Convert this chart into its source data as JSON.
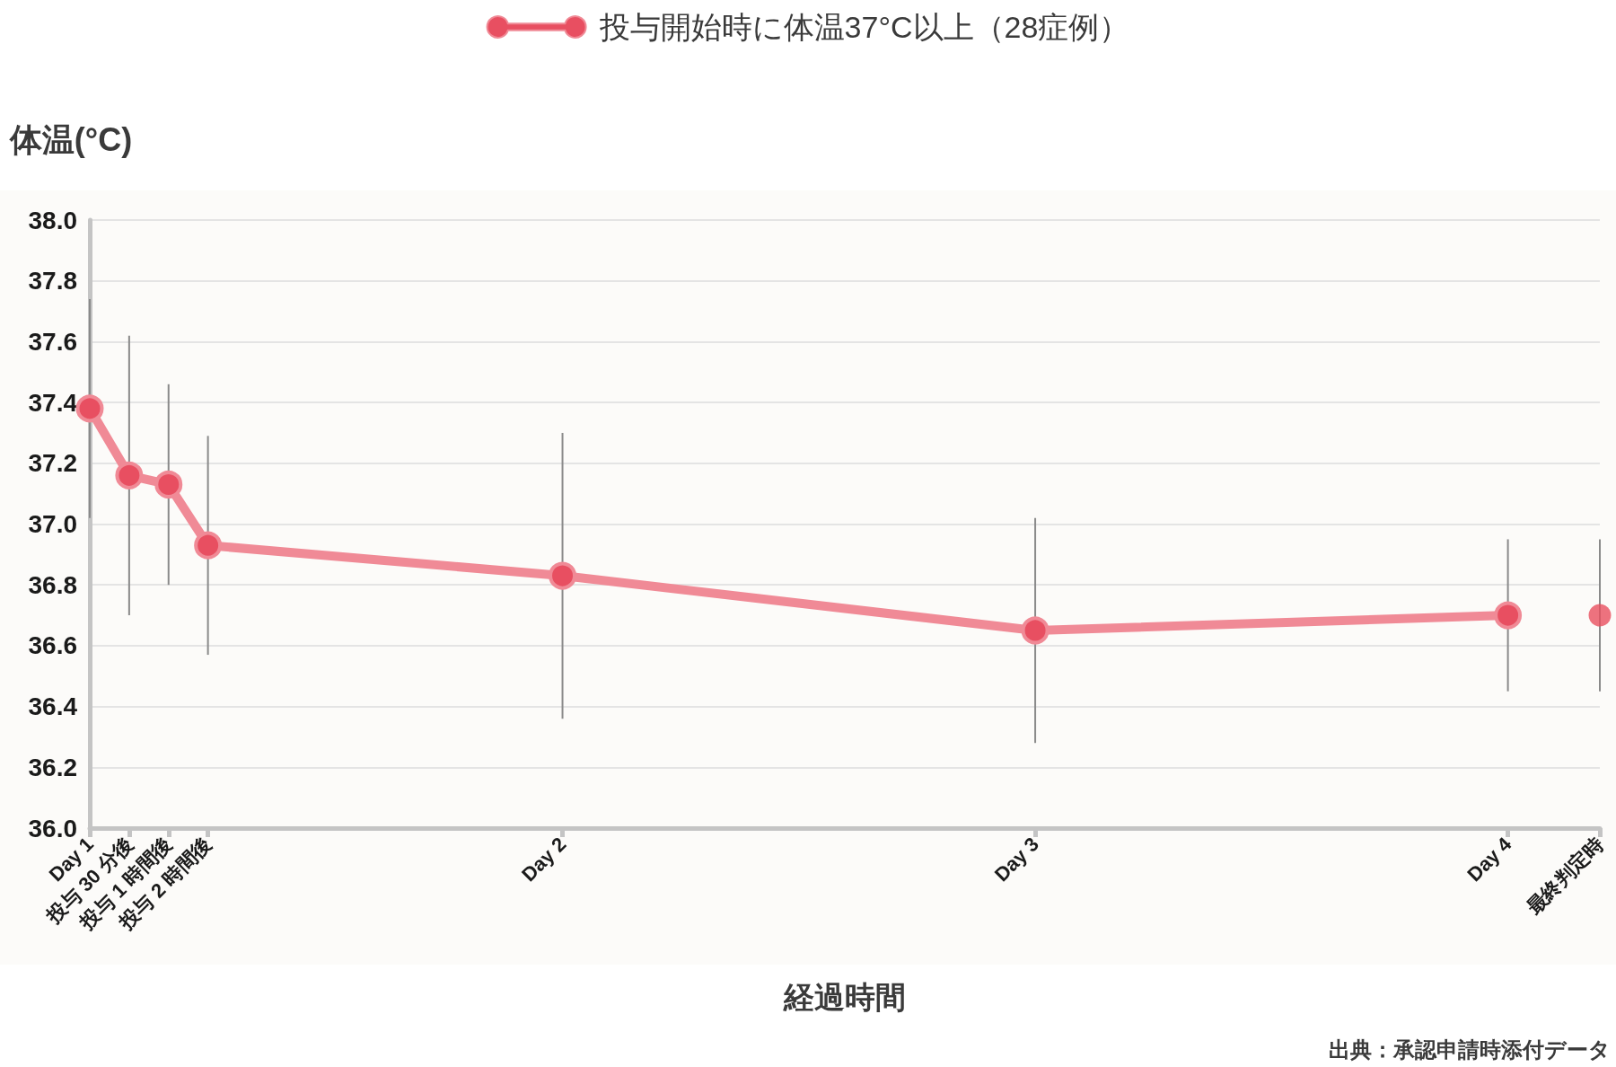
{
  "chart_data": {
    "type": "line",
    "legend": "top",
    "grid": "y",
    "marker": "circle",
    "line_style": "solid",
    "ylabel": "体温(°C)",
    "xlabel": "経過時間",
    "annotations": [
      "出典：承認申請時添付データ"
    ],
    "categories": [
      "Day 1",
      null,
      null,
      "投与 30 分後",
      null,
      null,
      "投与 1 時間後",
      null,
      null,
      "投与 2 時間後",
      null,
      null,
      null,
      null,
      null,
      null,
      null,
      null,
      null,
      null,
      null,
      null,
      null,
      null,
      null,
      null,
      null,
      null,
      null,
      null,
      null,
      null,
      null,
      null,
      null,
      null,
      "Day 2",
      null,
      null,
      null,
      null,
      null,
      null,
      null,
      null,
      null,
      null,
      null,
      null,
      null,
      null,
      null,
      null,
      null,
      null,
      null,
      null,
      null,
      null,
      null,
      null,
      null,
      null,
      null,
      null,
      null,
      null,
      null,
      null,
      null,
      null,
      null,
      "Day 3",
      null,
      null,
      null,
      null,
      null,
      null,
      null,
      null,
      null,
      null,
      null,
      null,
      null,
      null,
      null,
      null,
      null,
      null,
      null,
      null,
      null,
      null,
      null,
      null,
      null,
      null,
      null,
      null,
      null,
      null,
      null,
      null,
      null,
      null,
      null,
      "Day 4",
      null,
      null,
      null,
      null,
      null,
      null,
      "最終判定時"
    ],
    "ylim": [
      36,
      38
    ],
    "yticks": [
      {
        "value": 36,
        "label": "36.0"
      },
      {
        "value": 36.2,
        "label": "36.2"
      },
      {
        "value": 36.4,
        "label": "36.4"
      },
      {
        "value": 36.6,
        "label": "36.6"
      },
      {
        "value": 36.8,
        "label": "36.8"
      },
      {
        "value": 37,
        "label": "37.0"
      },
      {
        "value": 37.2,
        "label": "37.2"
      },
      {
        "value": 37.4,
        "label": "37.4"
      },
      {
        "value": 37.6,
        "label": "37.6"
      },
      {
        "value": 37.8,
        "label": "37.8"
      },
      {
        "value": 38,
        "label": "38.0"
      }
    ],
    "series": [
      {
        "name": "投与開始時に体温37°C以上（28症例）",
        "color": "#f08a96",
        "values": [
          37.38,
          null,
          null,
          37.16,
          null,
          null,
          37.13,
          null,
          null,
          36.93,
          null,
          null,
          null,
          null,
          null,
          null,
          null,
          null,
          null,
          null,
          null,
          null,
          null,
          null,
          null,
          null,
          null,
          null,
          null,
          null,
          null,
          null,
          null,
          null,
          null,
          null,
          36.83,
          null,
          null,
          null,
          null,
          null,
          null,
          null,
          null,
          null,
          null,
          null,
          null,
          null,
          null,
          null,
          null,
          null,
          null,
          null,
          null,
          null,
          null,
          null,
          null,
          null,
          null,
          null,
          null,
          null,
          null,
          null,
          null,
          null,
          null,
          null,
          36.65,
          null,
          null,
          null,
          null,
          null,
          null,
          null,
          null,
          null,
          null,
          null,
          null,
          null,
          null,
          null,
          null,
          null,
          null,
          null,
          null,
          null,
          null,
          null,
          null,
          null,
          null,
          null,
          null,
          null,
          null,
          null,
          null,
          null,
          null,
          null,
          36.7,
          null,
          null,
          null,
          null,
          null,
          null,
          null
        ],
        "errors": [
          0.36,
          null,
          null,
          0.46,
          null,
          null,
          0.33,
          null,
          null,
          0.36,
          null,
          null,
          null,
          null,
          null,
          null,
          null,
          null,
          null,
          null,
          null,
          null,
          null,
          null,
          null,
          null,
          null,
          null,
          null,
          null,
          null,
          null,
          null,
          null,
          null,
          null,
          0.47,
          null,
          null,
          null,
          null,
          null,
          null,
          null,
          null,
          null,
          null,
          null,
          null,
          null,
          null,
          null,
          null,
          null,
          null,
          null,
          null,
          null,
          null,
          null,
          null,
          null,
          null,
          null,
          null,
          null,
          null,
          null,
          null,
          null,
          null,
          null,
          0.37,
          null,
          null,
          null,
          null,
          null,
          null,
          null,
          null,
          null,
          null,
          null,
          null,
          null,
          null,
          null,
          null,
          null,
          null,
          null,
          null,
          null,
          null,
          null,
          null,
          null,
          null,
          null,
          null,
          null,
          null,
          null,
          null,
          null,
          null,
          null,
          0.25,
          null,
          null,
          null,
          null,
          null,
          null,
          null
        ]
      },
      {
        "type": "scatter",
        "color": "#e8505f",
        "values": [
          null,
          null,
          null,
          null,
          null,
          null,
          null,
          null,
          null,
          null,
          null,
          null,
          null,
          null,
          null,
          null,
          null,
          null,
          null,
          null,
          null,
          null,
          null,
          null,
          null,
          null,
          null,
          null,
          null,
          null,
          null,
          null,
          null,
          null,
          null,
          null,
          null,
          null,
          null,
          null,
          null,
          null,
          null,
          null,
          null,
          null,
          null,
          null,
          null,
          null,
          null,
          null,
          null,
          null,
          null,
          null,
          null,
          null,
          null,
          null,
          null,
          null,
          null,
          null,
          null,
          null,
          null,
          null,
          null,
          null,
          null,
          null,
          null,
          null,
          null,
          null,
          null,
          null,
          null,
          null,
          null,
          null,
          null,
          null,
          null,
          null,
          null,
          null,
          null,
          null,
          null,
          null,
          null,
          null,
          null,
          null,
          null,
          null,
          null,
          null,
          null,
          null,
          null,
          null,
          null,
          null,
          null,
          null,
          null,
          null,
          null,
          null,
          null,
          null,
          null,
          36.7
        ],
        "errors": [
          null,
          null,
          null,
          null,
          null,
          null,
          null,
          null,
          null,
          null,
          null,
          null,
          null,
          null,
          null,
          null,
          null,
          null,
          null,
          null,
          null,
          null,
          null,
          null,
          null,
          null,
          null,
          null,
          null,
          null,
          null,
          null,
          null,
          null,
          null,
          null,
          null,
          null,
          null,
          null,
          null,
          null,
          null,
          null,
          null,
          null,
          null,
          null,
          null,
          null,
          null,
          null,
          null,
          null,
          null,
          null,
          null,
          null,
          null,
          null,
          null,
          null,
          null,
          null,
          null,
          null,
          null,
          null,
          null,
          null,
          null,
          null,
          null,
          null,
          null,
          null,
          null,
          null,
          null,
          null,
          null,
          null,
          null,
          null,
          null,
          null,
          null,
          null,
          null,
          null,
          null,
          null,
          null,
          null,
          null,
          null,
          null,
          null,
          null,
          null,
          null,
          null,
          null,
          null,
          null,
          null,
          null,
          null,
          null,
          null,
          null,
          null,
          null,
          null,
          null,
          0.25
        ]
      }
    ]
  }
}
